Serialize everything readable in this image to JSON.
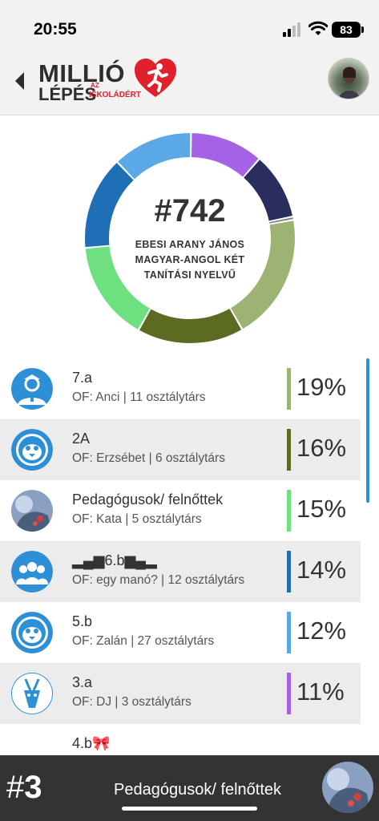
{
  "status": {
    "time": "20:55",
    "battery": "83"
  },
  "header": {
    "logo_line1": "MILLIÓ",
    "logo_line2": "LÉPÉS",
    "logo_az": "AZ",
    "logo_tagline": "ISKOLÁDÉRT",
    "back_icon": "chevron-left-icon",
    "avatar_icon": "profile-avatar"
  },
  "school": {
    "rank_number": "#742",
    "name": "EBESI ARANY JÁNOS MAGYAR-ANGOL KÉT TANÍTÁSI NYELVŰ"
  },
  "donut": {
    "segments": [
      {
        "value": 19,
        "color": "#9db374"
      },
      {
        "value": 16,
        "color": "#5c6b22"
      },
      {
        "value": 15,
        "color": "#6ee07f"
      },
      {
        "value": 14,
        "color": "#1e6fb5"
      },
      {
        "value": 12,
        "color": "#5aa9e6"
      },
      {
        "value": 11,
        "color": "#a463e6"
      },
      {
        "value": 10,
        "color": "#2a2e5e"
      },
      {
        "value": 0.5,
        "color": "#7a7a7a"
      }
    ]
  },
  "classes": [
    {
      "title": "7.a",
      "sub": "OF: Anci | 11 osztálytárs",
      "pct": "19%",
      "color": "#9db374",
      "icon": "teacher-icon"
    },
    {
      "title": "2A",
      "sub": "OF: Erzsébet | 6 osztálytárs",
      "pct": "16%",
      "color": "#5c6b22",
      "icon": "penguin-icon"
    },
    {
      "title": "Pedagógusok/ felnőttek",
      "sub": "OF: Kata | 5 osztálytárs",
      "pct": "15%",
      "color": "#6ee07f",
      "icon": "dragon-avatar"
    },
    {
      "title": "▂▄▆6.b▆▄▂",
      "sub": "OF: egy manó? | 12 osztálytárs",
      "pct": "14%",
      "color": "#1e6fb5",
      "icon": "group-icon"
    },
    {
      "title": "5.b",
      "sub": "OF: Zalán | 27 osztálytárs",
      "pct": "12%",
      "color": "#5aa9e6",
      "icon": "penguin-icon"
    },
    {
      "title": "3.a",
      "sub": "OF: DJ | 3 osztálytárs",
      "pct": "11%",
      "color": "#a463e6",
      "icon": "antelope-icon"
    },
    {
      "title": "4.b🎀",
      "sub": "",
      "pct": "",
      "color": "#2a2e5e",
      "icon": ""
    }
  ],
  "footer": {
    "rank_hash": "#",
    "rank_num": "3",
    "name": "Pedagógusok/ felnőttek",
    "avatar_icon": "dragon-avatar"
  }
}
